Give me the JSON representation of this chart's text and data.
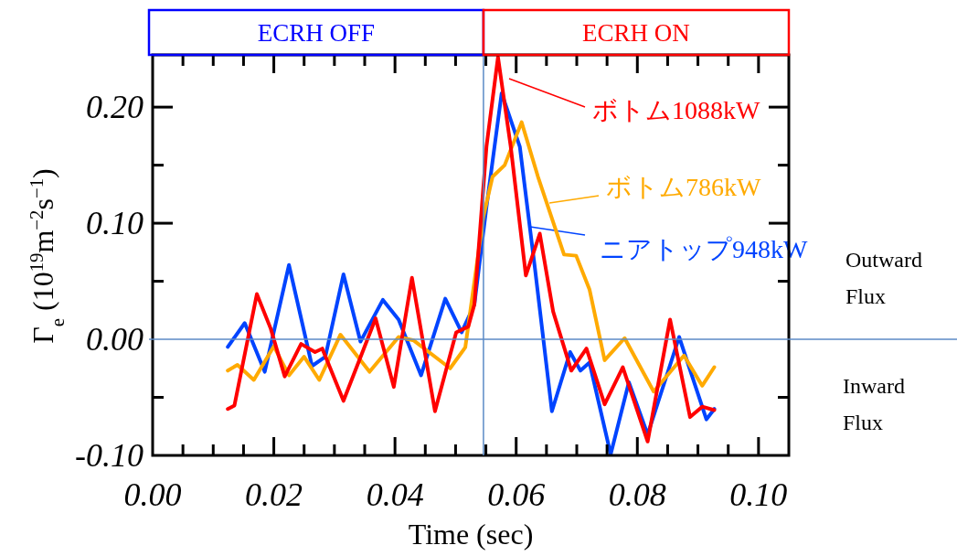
{
  "chart_data": {
    "type": "line",
    "xlabel": "Time (sec)",
    "ylabel": "Γ$_{e}$ (10$^{19}$m$^{−2}$s$^{−1}$)",
    "xlim": [
      0,
      0.105
    ],
    "ylim": [
      -0.1,
      0.245
    ],
    "xticks": [
      {
        "value": 0,
        "label": "0.00"
      },
      {
        "value": 0.005,
        "label": null
      },
      {
        "value": 0.01,
        "label": null
      },
      {
        "value": 0.015,
        "label": null
      },
      {
        "value": 0.02,
        "label": "0.02"
      },
      {
        "value": 0.025,
        "label": null
      },
      {
        "value": 0.03,
        "label": null
      },
      {
        "value": 0.035,
        "label": null
      },
      {
        "value": 0.04,
        "label": "0.04"
      },
      {
        "value": 0.045,
        "label": null
      },
      {
        "value": 0.05,
        "label": null
      },
      {
        "value": 0.055,
        "label": null
      },
      {
        "value": 0.06,
        "label": "0.06"
      },
      {
        "value": 0.065,
        "label": null
      },
      {
        "value": 0.07,
        "label": null
      },
      {
        "value": 0.075,
        "label": null
      },
      {
        "value": 0.08,
        "label": "0.08"
      },
      {
        "value": 0.085,
        "label": null
      },
      {
        "value": 0.09,
        "label": null
      },
      {
        "value": 0.095,
        "label": null
      },
      {
        "value": 0.1,
        "label": "0.10"
      }
    ],
    "yticks": [
      {
        "value": -0.1,
        "label": "-0.10"
      },
      {
        "value": -0.05,
        "label": null
      },
      {
        "value": 0,
        "label": "0.00"
      },
      {
        "value": 0.05,
        "label": null
      },
      {
        "value": 0.1,
        "label": "0.10"
      },
      {
        "value": 0.15,
        "label": null
      },
      {
        "value": 0.2,
        "label": "0.20"
      }
    ],
    "grid": false,
    "legend": "top right",
    "line_style": "solid",
    "marker": "none",
    "series": [
      {
        "name": "ニアトップ948kW",
        "color": "#0044ff",
        "x": [
          0.0124,
          0.0152,
          0.0185,
          0.0225,
          0.0263,
          0.0285,
          0.0315,
          0.0343,
          0.038,
          0.0406,
          0.0443,
          0.0483,
          0.051,
          0.0531,
          0.0551,
          0.0576,
          0.0606,
          0.0631,
          0.0659,
          0.0689,
          0.0706,
          0.0721,
          0.0756,
          0.0786,
          0.0817,
          0.0869,
          0.0914,
          0.0927
        ],
        "values": [
          -0.0066,
          0.014,
          -0.028,
          0.064,
          -0.023,
          -0.015,
          0.056,
          -0.002,
          0.034,
          0.017,
          -0.031,
          0.035,
          0.006,
          0.03,
          0.114,
          0.212,
          0.166,
          0.061,
          -0.062,
          -0.011,
          -0.027,
          -0.02,
          -0.099,
          -0.037,
          -0.082,
          0.002,
          -0.069,
          -0.06
        ]
      },
      {
        "name": "ボトム786kW",
        "color": "#ffaa00",
        "x": [
          0.0124,
          0.014,
          0.0167,
          0.02,
          0.0225,
          0.025,
          0.0275,
          0.031,
          0.0358,
          0.0406,
          0.0431,
          0.0491,
          0.0516,
          0.0546,
          0.0561,
          0.0581,
          0.0609,
          0.0636,
          0.0679,
          0.0699,
          0.0721,
          0.0746,
          0.0779,
          0.0827,
          0.0877,
          0.0907,
          0.0927
        ],
        "values": [
          -0.027,
          -0.022,
          -0.035,
          -0.006,
          -0.031,
          -0.015,
          -0.035,
          0.004,
          -0.028,
          0.002,
          -0.001,
          -0.025,
          -0.007,
          0.106,
          0.14,
          0.15,
          0.187,
          0.14,
          0.073,
          0.072,
          0.043,
          -0.018,
          0.001,
          -0.045,
          -0.014,
          -0.04,
          -0.024
        ]
      },
      {
        "name": "ボトム1088kW",
        "color": "#ff0000",
        "x": [
          0.0124,
          0.0135,
          0.0172,
          0.0195,
          0.0218,
          0.0245,
          0.0268,
          0.028,
          0.0315,
          0.0368,
          0.0398,
          0.0428,
          0.0466,
          0.0501,
          0.0521,
          0.0531,
          0.0551,
          0.057,
          0.0591,
          0.0616,
          0.0639,
          0.0661,
          0.0691,
          0.0716,
          0.0746,
          0.0776,
          0.0817,
          0.0854,
          0.0887,
          0.0907,
          0.0927
        ],
        "values": [
          -0.06,
          -0.057,
          0.039,
          0.009,
          -0.032,
          -0.004,
          -0.011,
          -0.008,
          -0.053,
          0.018,
          -0.041,
          0.053,
          -0.062,
          0.006,
          0.011,
          0.03,
          0.166,
          0.243,
          0.166,
          0.055,
          0.091,
          0.024,
          -0.027,
          -0.008,
          -0.056,
          -0.024,
          -0.088,
          0.017,
          -0.067,
          -0.058,
          -0.061
        ]
      }
    ],
    "ref_lines": [
      {
        "axis": "x",
        "value": 0.0546,
        "color": "#5b8ac6",
        "line_style": "solid"
      },
      {
        "axis": "y",
        "value": 0,
        "color": "#5b8ac6",
        "line_style": "solid"
      }
    ],
    "annotations": [
      "ECRH OFF",
      "ECRH ON",
      "Outward\nFlux",
      "Inward\nFlux"
    ]
  }
}
